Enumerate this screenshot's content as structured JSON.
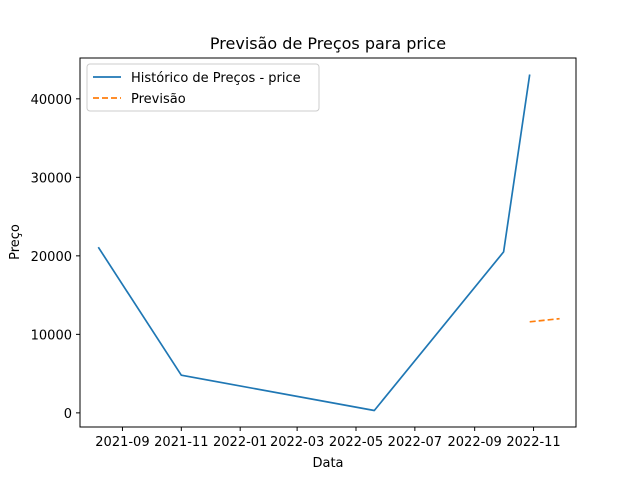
{
  "chart_data": {
    "type": "line",
    "title": "Previsão de Preços para price",
    "xlabel": "Data",
    "ylabel": "Preço",
    "x_tick_labels": [
      "2021-09",
      "2021-11",
      "2022-01",
      "2022-03",
      "2022-05",
      "2022-07",
      "2022-09",
      "2022-11"
    ],
    "y_tick_labels": [
      "0",
      "10000",
      "20000",
      "30000",
      "40000"
    ],
    "y_ticks": [
      0,
      10000,
      20000,
      30000,
      40000
    ],
    "ylim": [
      -1800,
      45200
    ],
    "xlim": [
      "2021-07-19",
      "2022-12-15"
    ],
    "grid": false,
    "legend_position": "upper-left",
    "series": [
      {
        "name": "Histórico de Preços - price",
        "color": "#1f77b4",
        "style": "solid",
        "points": [
          {
            "x": "2021-08-07",
            "y": 21100
          },
          {
            "x": "2021-11-01",
            "y": 4800
          },
          {
            "x": "2022-05-20",
            "y": 300
          },
          {
            "x": "2022-10-01",
            "y": 20500
          },
          {
            "x": "2022-10-28",
            "y": 43100
          }
        ]
      },
      {
        "name": "Previsão",
        "color": "#ff7f0e",
        "style": "dashed",
        "points": [
          {
            "x": "2022-10-28",
            "y": 11600
          },
          {
            "x": "2022-11-28",
            "y": 12000
          }
        ]
      }
    ]
  }
}
